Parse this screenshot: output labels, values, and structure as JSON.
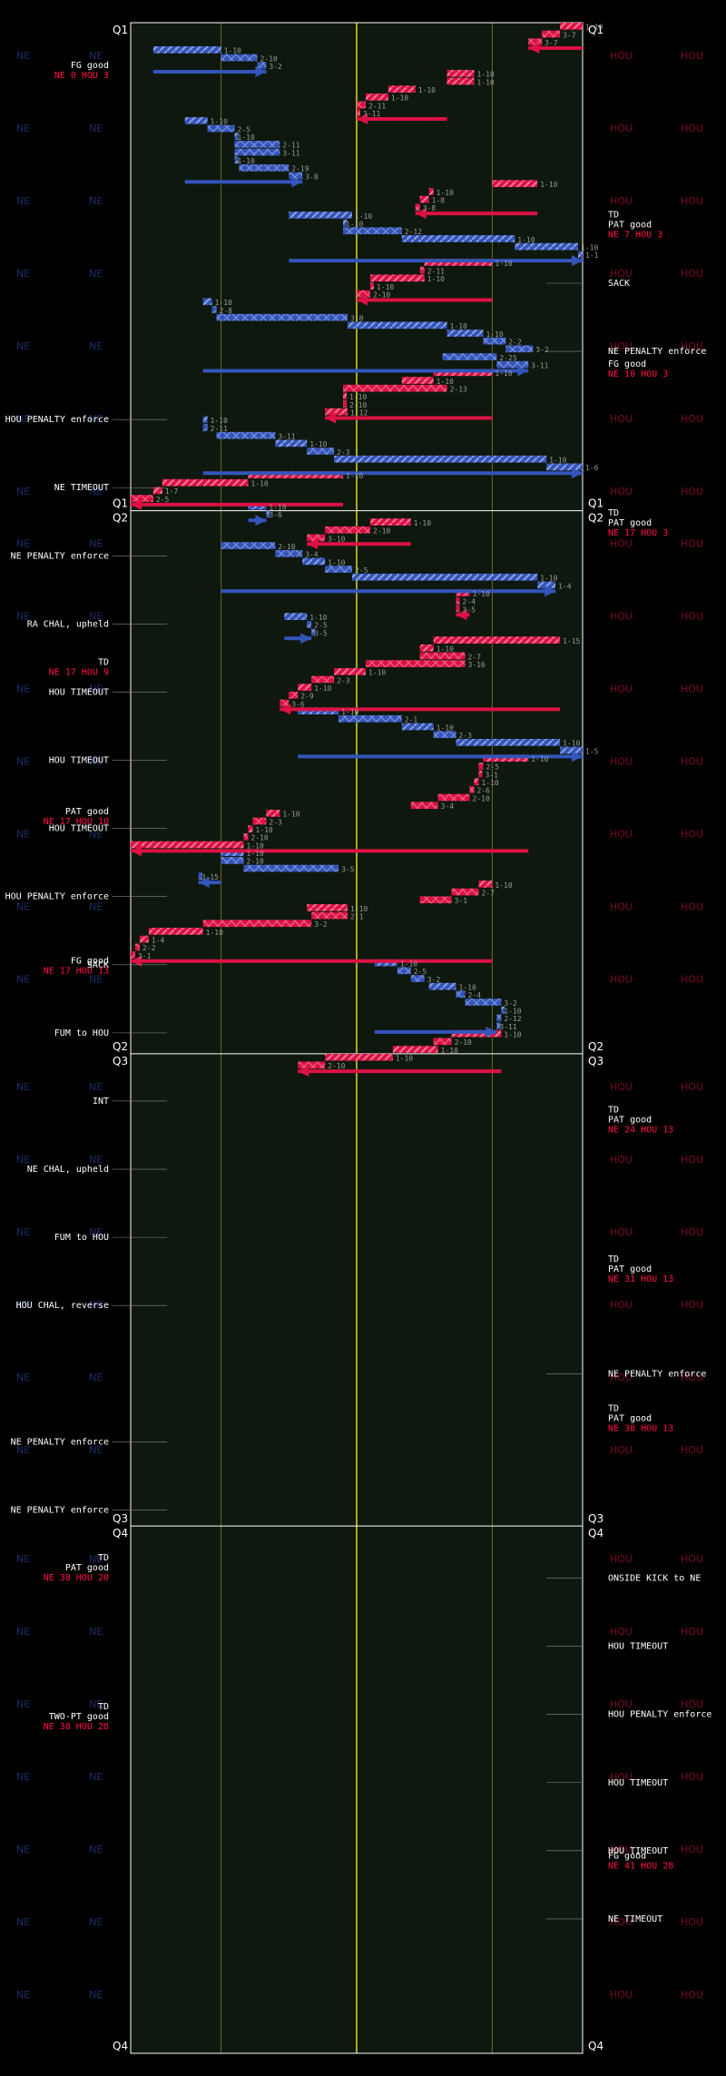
{
  "chart_data": {
    "type": "drive-chart",
    "teams": {
      "left": "NE",
      "right": "HOU"
    },
    "colors": {
      "NE": "#3355bb",
      "HOU": "#dd1144",
      "field": "#0e180e",
      "yard_lines": "#6b6b22",
      "midfield": "#a9a929"
    },
    "quarters": [
      {
        "label": "Q1",
        "start_down": 0,
        "end_down": 62
      },
      {
        "label": "Q2",
        "start_down": 62,
        "end_down": 131
      },
      {
        "label": "Q3",
        "start_down": 131,
        "end_down": 191
      },
      {
        "label": "Q4",
        "start_down": 191,
        "end_down": 258
      }
    ],
    "downs": [
      {
        "team": "HOU",
        "from": 100,
        "to": 95,
        "down": "1-10"
      },
      {
        "team": "HOU",
        "from": 95,
        "to": 91,
        "down": "3-7"
      },
      {
        "team": "HOU",
        "from": 91,
        "to": 88,
        "down": "3-7"
      },
      {
        "team": "NE",
        "from": 5,
        "to": 20,
        "down": "1-10"
      },
      {
        "team": "NE",
        "from": 20,
        "to": 28,
        "down": "2-10"
      },
      {
        "team": "NE",
        "from": 28,
        "to": 30,
        "down": "3-2"
      },
      {
        "team": "HOU",
        "from": 70,
        "to": 76,
        "down": "1-10"
      },
      {
        "team": "HOU",
        "from": 76,
        "to": 70,
        "down": "1-10"
      },
      {
        "team": "HOU",
        "from": 57,
        "to": 63,
        "down": "1-10"
      },
      {
        "team": "HOU",
        "from": 57,
        "to": 52,
        "down": "1-10"
      },
      {
        "team": "HOU",
        "from": 52,
        "to": 50,
        "down": "2-11"
      },
      {
        "team": "HOU",
        "from": 50,
        "to": 50,
        "down": "3-11"
      },
      {
        "team": "NE",
        "from": 12,
        "to": 17,
        "down": "1-10"
      },
      {
        "team": "NE",
        "from": 17,
        "to": 23,
        "down": "2-5"
      },
      {
        "team": "NE",
        "from": 23,
        "to": 23,
        "down": "1-10"
      },
      {
        "team": "NE",
        "from": 23,
        "to": 33,
        "down": "2-11"
      },
      {
        "team": "NE",
        "from": 23,
        "to": 33,
        "down": "3-11"
      },
      {
        "team": "NE",
        "from": 23,
        "to": 23,
        "down": "1-10"
      },
      {
        "team": "NE",
        "from": 24,
        "to": 35,
        "down": "2-19"
      },
      {
        "team": "NE",
        "from": 35,
        "to": 38,
        "down": "3-8"
      },
      {
        "team": "HOU",
        "from": 90,
        "to": 80,
        "down": "1-10"
      },
      {
        "team": "HOU",
        "from": 67,
        "to": 66,
        "down": "1-10"
      },
      {
        "team": "HOU",
        "from": 66,
        "to": 64,
        "down": "1-8"
      },
      {
        "team": "HOU",
        "from": 64,
        "to": 63,
        "down": "3-8"
      },
      {
        "team": "NE",
        "from": 35,
        "to": 49,
        "down": "1-10"
      },
      {
        "team": "NE",
        "from": 47,
        "to": 47,
        "down": "1-10"
      },
      {
        "team": "NE",
        "from": 47,
        "to": 60,
        "down": "2-12"
      },
      {
        "team": "NE",
        "from": 60,
        "to": 85,
        "down": "1-10"
      },
      {
        "team": "NE",
        "from": 85,
        "to": 99,
        "down": "1-10"
      },
      {
        "team": "NE",
        "from": 99,
        "to": 100,
        "down": "1-1"
      },
      {
        "team": "HOU",
        "from": 80,
        "to": 65,
        "down": "1-10"
      },
      {
        "team": "HOU",
        "from": 65,
        "to": 64,
        "down": "2-11"
      },
      {
        "team": "HOU",
        "from": 65,
        "to": 53,
        "down": "1-10"
      },
      {
        "team": "HOU",
        "from": 53,
        "to": 53,
        "down": "1-10"
      },
      {
        "team": "HOU",
        "from": 53,
        "to": 50,
        "down": "2-10"
      },
      {
        "team": "NE",
        "from": 16,
        "to": 18,
        "down": "1-10"
      },
      {
        "team": "NE",
        "from": 18,
        "to": 19,
        "down": "2-8"
      },
      {
        "team": "NE",
        "from": 19,
        "to": 48,
        "down": "3-8"
      },
      {
        "team": "NE",
        "from": 48,
        "to": 70,
        "down": "1-10"
      },
      {
        "team": "NE",
        "from": 70,
        "to": 78,
        "down": "1-10"
      },
      {
        "team": "NE",
        "from": 78,
        "to": 83,
        "down": "2-2"
      },
      {
        "team": "NE",
        "from": 83,
        "to": 89,
        "down": "3-2"
      },
      {
        "team": "NE",
        "from": 69,
        "to": 81,
        "down": "2-25"
      },
      {
        "team": "NE",
        "from": 81,
        "to": 88,
        "down": "3-11"
      },
      {
        "team": "HOU",
        "from": 80,
        "to": 67,
        "down": "1-10"
      },
      {
        "team": "HOU",
        "from": 67,
        "to": 60,
        "down": "1-10"
      },
      {
        "team": "HOU",
        "from": 70,
        "to": 47,
        "down": "2-13"
      },
      {
        "team": "HOU",
        "from": 47,
        "to": 47,
        "down": "1-10"
      },
      {
        "team": "HOU",
        "from": 47,
        "to": 47,
        "down": "2-10"
      },
      {
        "team": "HOU",
        "from": 48,
        "to": 43,
        "down": "1-12"
      },
      {
        "team": "NE",
        "from": 16,
        "to": 17,
        "down": "1-10"
      },
      {
        "team": "NE",
        "from": 16,
        "to": 17,
        "down": "2-11"
      },
      {
        "team": "NE",
        "from": 19,
        "to": 32,
        "down": "3-11"
      },
      {
        "team": "NE",
        "from": 32,
        "to": 39,
        "down": "1-10"
      },
      {
        "team": "NE",
        "from": 39,
        "to": 45,
        "down": "2-3"
      },
      {
        "team": "NE",
        "from": 45,
        "to": 92,
        "down": "1-10"
      },
      {
        "team": "NE",
        "from": 92,
        "to": 100,
        "down": "1-6"
      },
      {
        "team": "HOU",
        "from": 47,
        "to": 26,
        "down": "1-10"
      },
      {
        "team": "HOU",
        "from": 26,
        "to": 7,
        "down": "1-10"
      },
      {
        "team": "HOU",
        "from": 7,
        "to": 5,
        "down": "1-7"
      },
      {
        "team": "HOU",
        "from": 5,
        "to": 0,
        "down": "2-5"
      },
      {
        "team": "NE",
        "from": 26,
        "to": 30,
        "down": "1-10"
      },
      {
        "team": "NE",
        "from": 30,
        "to": 30,
        "down": "3-6"
      },
      {
        "team": "HOU",
        "from": 62,
        "to": 53,
        "down": "1-10"
      },
      {
        "team": "HOU",
        "from": 53,
        "to": 43,
        "down": "2-10"
      },
      {
        "team": "HOU",
        "from": 43,
        "to": 39,
        "down": "3-10"
      },
      {
        "team": "NE",
        "from": 20,
        "to": 32,
        "down": "2-10"
      },
      {
        "team": "NE",
        "from": 32,
        "to": 38,
        "down": "3-4"
      },
      {
        "team": "NE",
        "from": 38,
        "to": 43,
        "down": "1-10"
      },
      {
        "team": "NE",
        "from": 43,
        "to": 49,
        "down": "2-5"
      },
      {
        "team": "NE",
        "from": 49,
        "to": 90,
        "down": "1-10"
      },
      {
        "team": "NE",
        "from": 90,
        "to": 94,
        "down": "1-4"
      },
      {
        "team": "HOU",
        "from": 75,
        "to": 72,
        "down": "1-10"
      },
      {
        "team": "HOU",
        "from": 72,
        "to": 72,
        "down": "2-4"
      },
      {
        "team": "HOU",
        "from": 72,
        "to": 72,
        "down": "3-5"
      },
      {
        "team": "NE",
        "from": 34,
        "to": 39,
        "down": "1-10"
      },
      {
        "team": "NE",
        "from": 39,
        "to": 40,
        "down": "2-5"
      },
      {
        "team": "NE",
        "from": 40,
        "to": 40,
        "down": "3-5"
      },
      {
        "team": "HOU",
        "from": 95,
        "to": 67,
        "down": "1-15"
      },
      {
        "team": "HOU",
        "from": 67,
        "to": 64,
        "down": "1-10"
      },
      {
        "team": "HOU",
        "from": 64,
        "to": 74,
        "down": "2-7"
      },
      {
        "team": "HOU",
        "from": 74,
        "to": 52,
        "down": "3-16"
      },
      {
        "team": "HOU",
        "from": 52,
        "to": 45,
        "down": "1-10"
      },
      {
        "team": "HOU",
        "from": 45,
        "to": 40,
        "down": "2-3"
      },
      {
        "team": "HOU",
        "from": 40,
        "to": 37,
        "down": "1-10"
      },
      {
        "team": "HOU",
        "from": 37,
        "to": 35,
        "down": "2-9"
      },
      {
        "team": "HOU",
        "from": 35,
        "to": 33,
        "down": "3-6"
      },
      {
        "team": "NE",
        "from": 37,
        "to": 46,
        "down": "1-10"
      },
      {
        "team": "NE",
        "from": 46,
        "to": 60,
        "down": "2-1"
      },
      {
        "team": "NE",
        "from": 60,
        "to": 67,
        "down": "1-10"
      },
      {
        "team": "NE",
        "from": 67,
        "to": 72,
        "down": "2-3"
      },
      {
        "team": "NE",
        "from": 72,
        "to": 95,
        "down": "1-10"
      },
      {
        "team": "NE",
        "from": 95,
        "to": 100,
        "down": "1-5"
      },
      {
        "team": "HOU",
        "from": 88,
        "to": 78,
        "down": "1-10"
      },
      {
        "team": "HOU",
        "from": 78,
        "to": 77,
        "down": "2-5"
      },
      {
        "team": "HOU",
        "from": 77,
        "to": 77,
        "down": "3-1"
      },
      {
        "team": "HOU",
        "from": 77,
        "to": 76,
        "down": "1-10"
      },
      {
        "team": "HOU",
        "from": 76,
        "to": 75,
        "down": "2-6"
      },
      {
        "team": "HOU",
        "from": 75,
        "to": 68,
        "down": "2-10"
      },
      {
        "team": "HOU",
        "from": 68,
        "to": 62,
        "down": "3-4"
      },
      {
        "team": "HOU",
        "from": 33,
        "to": 30,
        "down": "1-10"
      },
      {
        "team": "HOU",
        "from": 30,
        "to": 27,
        "down": "2-3"
      },
      {
        "team": "HOU",
        "from": 27,
        "to": 26,
        "down": "1-10"
      },
      {
        "team": "HOU",
        "from": 26,
        "to": 25,
        "down": "2-10"
      },
      {
        "team": "HOU",
        "from": 25,
        "to": 0,
        "down": "1-10"
      },
      {
        "team": "NE",
        "from": 20,
        "to": 25,
        "down": "1-10"
      },
      {
        "team": "NE",
        "from": 20,
        "to": 25,
        "down": "2-10"
      },
      {
        "team": "NE",
        "from": 25,
        "to": 46,
        "down": "3-5"
      },
      {
        "team": "NE",
        "from": 15,
        "to": 15,
        "down": "3-15"
      },
      {
        "team": "HOU",
        "from": 80,
        "to": 77,
        "down": "1-10"
      },
      {
        "team": "HOU",
        "from": 77,
        "to": 71,
        "down": "2-7"
      },
      {
        "team": "HOU",
        "from": 71,
        "to": 64,
        "down": "3-1"
      },
      {
        "team": "HOU",
        "from": 48,
        "to": 39,
        "down": "1-10"
      },
      {
        "team": "HOU",
        "from": 48,
        "to": 40,
        "down": "2-1"
      },
      {
        "team": "HOU",
        "from": 40,
        "to": 16,
        "down": "3-2"
      },
      {
        "team": "HOU",
        "from": 16,
        "to": 4,
        "down": "1-10"
      },
      {
        "team": "HOU",
        "from": 4,
        "to": 2,
        "down": "1-4"
      },
      {
        "team": "HOU",
        "from": 2,
        "to": 1,
        "down": "2-2"
      },
      {
        "team": "HOU",
        "from": 1,
        "to": 0,
        "down": "3-1"
      },
      {
        "team": "NE",
        "from": 54,
        "to": 59,
        "down": "1-10"
      },
      {
        "team": "NE",
        "from": 59,
        "to": 62,
        "down": "2-5"
      },
      {
        "team": "NE",
        "from": 62,
        "to": 65,
        "down": "3-2"
      },
      {
        "team": "NE",
        "from": 66,
        "to": 72,
        "down": "1-10"
      },
      {
        "team": "NE",
        "from": 72,
        "to": 74,
        "down": "2-4"
      },
      {
        "team": "NE",
        "from": 74,
        "to": 82,
        "down": "3-2"
      },
      {
        "team": "NE",
        "from": 82,
        "to": 82,
        "down": "1-10"
      },
      {
        "team": "NE",
        "from": 82,
        "to": 81,
        "down": "2-12"
      },
      {
        "team": "NE",
        "from": 81,
        "to": 81,
        "down": "3-11"
      },
      {
        "team": "HOU",
        "from": 82,
        "to": 71,
        "down": "1-10"
      },
      {
        "team": "HOU",
        "from": 71,
        "to": 67,
        "down": "2-10"
      },
      {
        "team": "HOU",
        "from": 68,
        "to": 58,
        "down": "1-10"
      },
      {
        "team": "HOU",
        "from": 58,
        "to": 43,
        "down": "1-10"
      },
      {
        "team": "HOU",
        "from": 43,
        "to": 37,
        "down": "2-10"
      }
    ],
    "annotations": [
      {
        "side": "right",
        "text": "SACK"
      },
      {
        "side": "right",
        "text": "NE PENALTY enforce"
      },
      {
        "side": "left",
        "text": "HOU PENALTY enforce"
      },
      {
        "side": "left",
        "text": "NE TIMEOUT"
      },
      {
        "side": "left",
        "text": "NE PENALTY enforce"
      },
      {
        "side": "left",
        "text": "RA CHAL, upheld"
      },
      {
        "side": "left",
        "text": "HOU TIMEOUT"
      },
      {
        "side": "left",
        "text": "HOU TIMEOUT"
      },
      {
        "side": "left",
        "text": "HOU TIMEOUT"
      },
      {
        "side": "left",
        "text": "HOU PENALTY enforce"
      },
      {
        "side": "left",
        "text": "SACK"
      },
      {
        "side": "left",
        "text": "FUM to HOU"
      },
      {
        "side": "left",
        "text": "INT"
      },
      {
        "side": "left",
        "text": "NE CHAL, upheld"
      },
      {
        "side": "left",
        "text": "FUM to HOU"
      },
      {
        "side": "left",
        "text": "HOU CHAL, reverse"
      },
      {
        "side": "right",
        "text": "NE PENALTY enforce"
      },
      {
        "side": "left",
        "text": "NE PENALTY enforce"
      },
      {
        "side": "left",
        "text": "NE PENALTY enforce"
      },
      {
        "side": "right",
        "text": "ONSIDE KICK to NE"
      },
      {
        "side": "right",
        "text": "HOU TIMEOUT"
      },
      {
        "side": "right",
        "text": "HOU PENALTY enforce"
      },
      {
        "side": "right",
        "text": "HOU TIMEOUT"
      },
      {
        "side": "right",
        "text": "HOU TIMEOUT"
      },
      {
        "side": "right",
        "text": "NE TIMEOUT"
      }
    ],
    "scores": [
      {
        "side": "left",
        "result": "FG good",
        "score": "NE 0 HOU 3"
      },
      {
        "side": "right",
        "result": "TD",
        "extra": "PAT good",
        "score": "NE 7 HOU 3"
      },
      {
        "side": "right",
        "result": "FG good",
        "score": "NE 10 HOU 3"
      },
      {
        "side": "right",
        "result": "TD",
        "extra": "PAT good",
        "score": "NE 17 HOU 3"
      },
      {
        "side": "left",
        "result": "TD",
        "score": "NE 17 HOU 9"
      },
      {
        "side": "left",
        "result": "PAT good",
        "score": "NE 17 HOU 10"
      },
      {
        "side": "left",
        "result": "FG good",
        "score": "NE 17 HOU 13"
      },
      {
        "side": "right",
        "result": "TD",
        "extra": "PAT good",
        "score": "NE 24 HOU 13"
      },
      {
        "side": "right",
        "result": "TD",
        "extra": "PAT good",
        "score": "NE 31 HOU 13"
      },
      {
        "side": "right",
        "result": "TD",
        "extra": "PAT good",
        "score": "NE 38 HOU 13"
      },
      {
        "side": "left",
        "result": "TD",
        "extra": "PAT good",
        "score": "NE 38 HOU 20"
      },
      {
        "side": "left",
        "result": "TD",
        "extra": "TWO-PT good",
        "score": "NE 38 HOU 28"
      },
      {
        "side": "right",
        "result": "FG good",
        "score": "NE 41 HOU 28"
      }
    ]
  }
}
